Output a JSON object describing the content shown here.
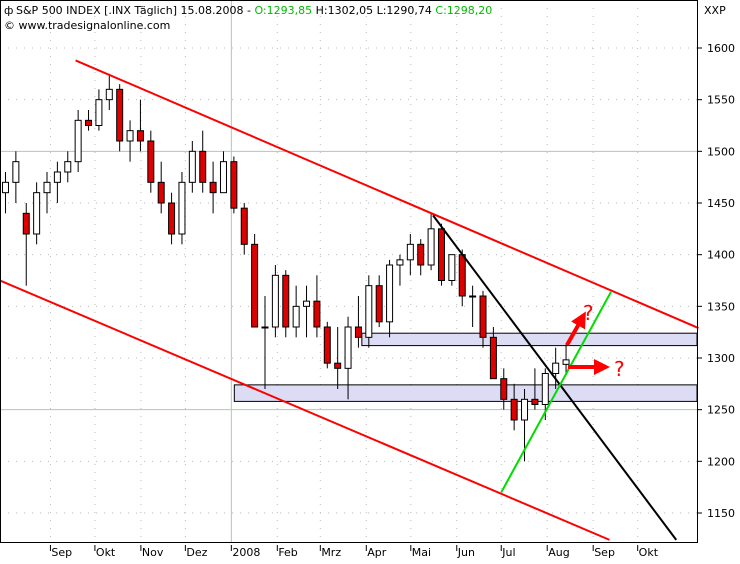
{
  "header": {
    "symbol": "S&P 500 INDEX [.INX  Täglich]",
    "date": "15.08.2008",
    "sep": "-",
    "open": "O:1293,85",
    "high": "H:1302,05",
    "low": "L:1290,74",
    "close": "C:1298,20",
    "source": "© www.tradesignalonline.com",
    "axis_tag": "XXP"
  },
  "colors": {
    "up_fill": "#ffffff",
    "down_fill": "#dd0000",
    "channel": "#ff0000",
    "trend_black": "#000000",
    "trend_green": "#00dd00",
    "zone": "#dcdcf5",
    "grid": "#b0c8b0",
    "ohlc_green": "#00bb00"
  },
  "chart_data": {
    "type": "candlestick",
    "title": "S&P 500 INDEX [.INX  Täglich]",
    "ylim": [
      1125,
      1625
    ],
    "xlim": [
      "2007-07-29",
      "2008-11-10"
    ],
    "yticks": [
      1150,
      1200,
      1250,
      1300,
      1350,
      1400,
      1450,
      1500,
      1550,
      1600
    ],
    "xticks": [
      {
        "label": "Sep",
        "date": "2007-09-01"
      },
      {
        "label": "Okt",
        "date": "2007-10-01"
      },
      {
        "label": "Nov",
        "date": "2007-11-01"
      },
      {
        "label": "Dez",
        "date": "2007-12-01"
      },
      {
        "label": "2008",
        "date": "2008-01-01"
      },
      {
        "label": "Feb",
        "date": "2008-02-01"
      },
      {
        "label": "Mrz",
        "date": "2008-03-01"
      },
      {
        "label": "Apr",
        "date": "2008-04-01"
      },
      {
        "label": "Mai",
        "date": "2008-05-01"
      },
      {
        "label": "Jun",
        "date": "2008-06-01"
      },
      {
        "label": "Jul",
        "date": "2008-07-01"
      },
      {
        "label": "Aug",
        "date": "2008-08-01"
      },
      {
        "label": "Sep",
        "date": "2008-09-01"
      },
      {
        "label": "Okt",
        "date": "2008-10-01"
      }
    ],
    "solid_grid": {
      "y": [
        1250,
        1500
      ],
      "x": [
        "2008-01-01"
      ]
    },
    "candles_start": "2007-07-30",
    "candle_interval_days": 7,
    "candles": [
      [
        1460,
        1480,
        1440,
        1470
      ],
      [
        1470,
        1500,
        1450,
        1490
      ],
      [
        1440,
        1450,
        1370,
        1420
      ],
      [
        1420,
        1470,
        1410,
        1460
      ],
      [
        1460,
        1480,
        1440,
        1470
      ],
      [
        1470,
        1490,
        1450,
        1480
      ],
      [
        1480,
        1500,
        1470,
        1490
      ],
      [
        1490,
        1540,
        1480,
        1530
      ],
      [
        1530,
        1540,
        1520,
        1525
      ],
      [
        1525,
        1560,
        1520,
        1550
      ],
      [
        1550,
        1575,
        1540,
        1560
      ],
      [
        1560,
        1565,
        1500,
        1510
      ],
      [
        1510,
        1530,
        1490,
        1520
      ],
      [
        1520,
        1550,
        1500,
        1510
      ],
      [
        1510,
        1520,
        1460,
        1470
      ],
      [
        1470,
        1490,
        1440,
        1450
      ],
      [
        1450,
        1460,
        1410,
        1420
      ],
      [
        1420,
        1480,
        1410,
        1470
      ],
      [
        1470,
        1510,
        1460,
        1500
      ],
      [
        1500,
        1520,
        1460,
        1470
      ],
      [
        1470,
        1490,
        1440,
        1460
      ],
      [
        1460,
        1500,
        1460,
        1490
      ],
      [
        1490,
        1495,
        1440,
        1445
      ],
      [
        1445,
        1450,
        1400,
        1410
      ],
      [
        1410,
        1420,
        1330,
        1330
      ],
      [
        1330,
        1360,
        1270,
        1330
      ],
      [
        1330,
        1390,
        1320,
        1380
      ],
      [
        1380,
        1385,
        1320,
        1330
      ],
      [
        1330,
        1370,
        1320,
        1350
      ],
      [
        1350,
        1370,
        1320,
        1355
      ],
      [
        1355,
        1380,
        1320,
        1330
      ],
      [
        1330,
        1335,
        1290,
        1295
      ],
      [
        1295,
        1330,
        1270,
        1290
      ],
      [
        1290,
        1340,
        1260,
        1330
      ],
      [
        1330,
        1360,
        1310,
        1320
      ],
      [
        1320,
        1380,
        1310,
        1370
      ],
      [
        1370,
        1380,
        1330,
        1335
      ],
      [
        1335,
        1395,
        1320,
        1390
      ],
      [
        1390,
        1400,
        1370,
        1395
      ],
      [
        1395,
        1420,
        1380,
        1410
      ],
      [
        1410,
        1415,
        1380,
        1390
      ],
      [
        1390,
        1440,
        1385,
        1425
      ],
      [
        1425,
        1430,
        1370,
        1375
      ],
      [
        1375,
        1400,
        1370,
        1400
      ],
      [
        1400,
        1405,
        1350,
        1360
      ],
      [
        1360,
        1370,
        1330,
        1360
      ],
      [
        1360,
        1365,
        1310,
        1320
      ],
      [
        1320,
        1330,
        1280,
        1280
      ],
      [
        1280,
        1290,
        1250,
        1260
      ],
      [
        1260,
        1275,
        1230,
        1240
      ],
      [
        1240,
        1270,
        1200,
        1260
      ],
      [
        1260,
        1290,
        1250,
        1255
      ],
      [
        1255,
        1290,
        1240,
        1285
      ],
      [
        1285,
        1310,
        1270,
        1295
      ],
      [
        1293.85,
        1313,
        1285,
        1298.2
      ]
    ],
    "lines": [
      {
        "kind": "channel-upper",
        "color": "#ff0000",
        "from": [
          "2007-09-18",
          1588
        ],
        "to": [
          "2008-11-11",
          1329
        ]
      },
      {
        "kind": "channel-lower",
        "color": "#ff0000",
        "from": [
          "2007-07-29",
          1375
        ],
        "to": [
          "2008-09-12",
          1124
        ]
      },
      {
        "kind": "downtrend",
        "color": "#000000",
        "from": [
          "2008-05-16",
          1438
        ],
        "to": [
          "2008-10-27",
          1124
        ]
      },
      {
        "kind": "uptrend",
        "color": "#00dd00",
        "from": [
          "2008-07-01",
          1170
        ],
        "to": [
          "2008-09-13",
          1364
        ]
      }
    ],
    "zones": [
      {
        "from": "2008-03-29",
        "low": 1312,
        "high": 1324
      },
      {
        "from": "2008-01-03",
        "low": 1258,
        "high": 1274
      }
    ],
    "annotations": [
      {
        "kind": "arrow-up",
        "text": "?"
      },
      {
        "kind": "arrow-right",
        "text": "?"
      }
    ]
  }
}
